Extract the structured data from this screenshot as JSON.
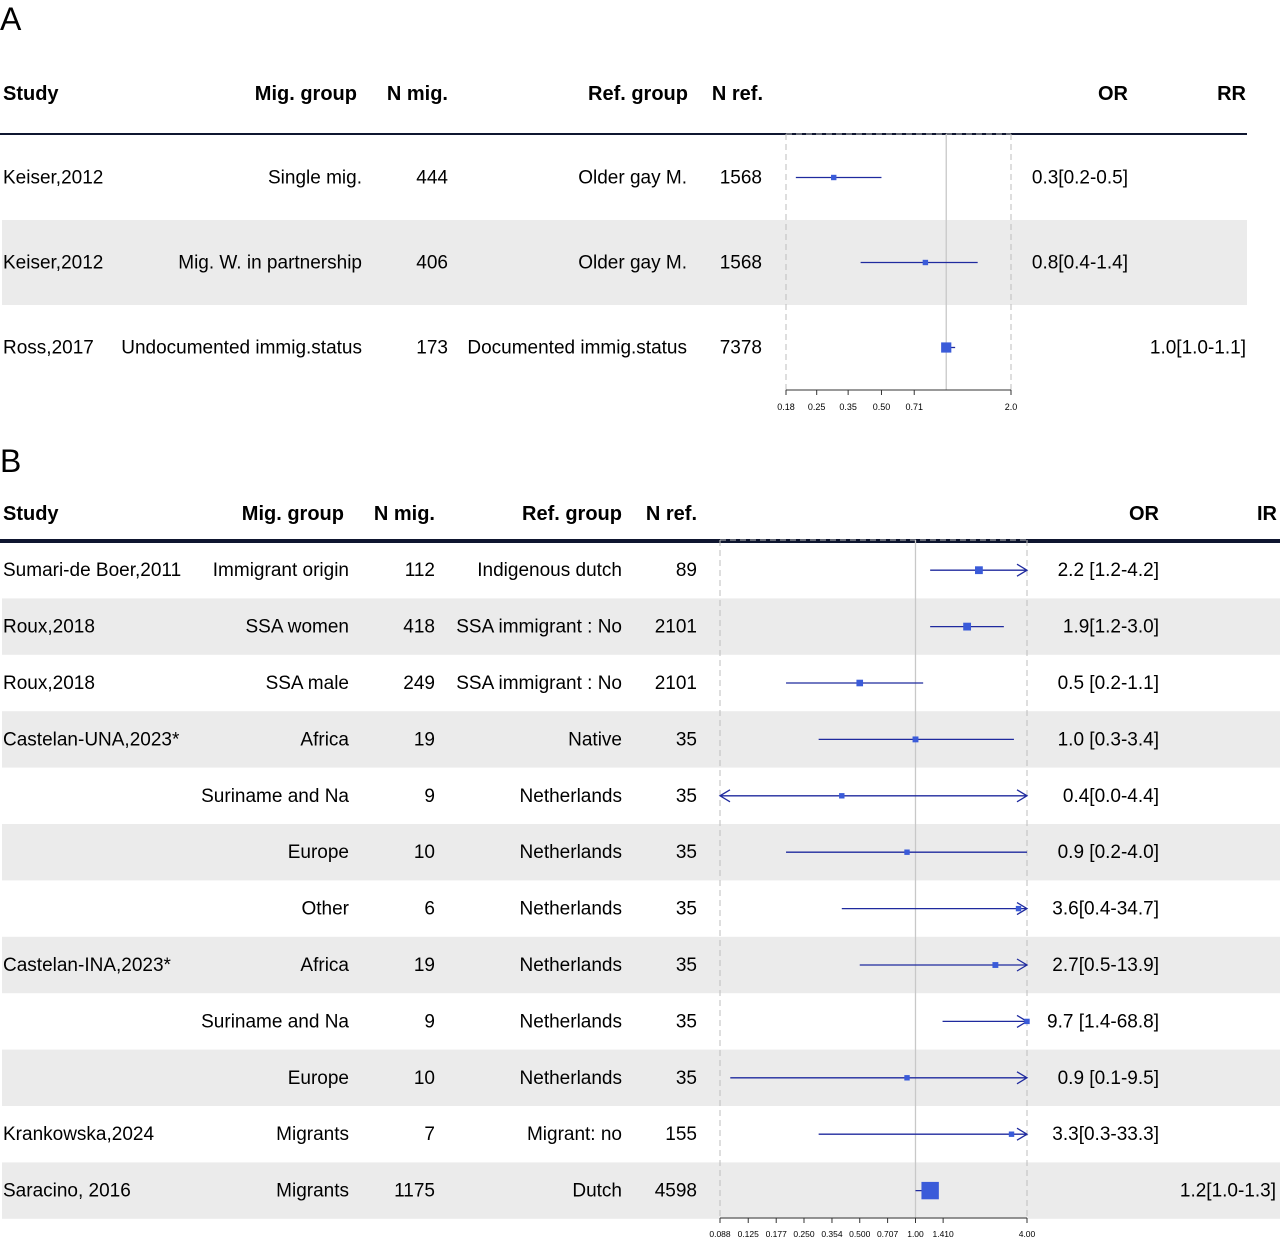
{
  "colors": {
    "marker": "#3a5bd9",
    "ci_line": "#1f2a9e",
    "stripe": "#ebebeb",
    "rule": "#0f1630",
    "ref_line": "#c8c8c8",
    "dashed": "#bdbdbd"
  },
  "chart_data": [
    {
      "type": "forest",
      "panel_label": "A",
      "columns": {
        "study": "Study",
        "mig_group": "Mig. group",
        "n_mig": "N mig.",
        "ref_group": "Ref. group",
        "n_ref": "N ref.",
        "or": "OR",
        "rr": "RR"
      },
      "x_ticks": [
        0.18,
        0.25,
        0.35,
        0.5,
        0.71,
        2.0
      ],
      "x_tick_labels": [
        "0.18",
        "0.25",
        "0.35",
        "0.50",
        "0.71",
        "2.0"
      ],
      "x_range": [
        0.18,
        2.0
      ],
      "reference_value": 1.0,
      "log_scale": true,
      "rows": [
        {
          "study": "Keiser,2012",
          "mig_group": "Single mig.",
          "n_mig": "444",
          "ref_group": "Older gay M.",
          "n_ref": "1568",
          "estimate": 0.3,
          "lower": 0.2,
          "upper": 0.5,
          "or_text": "0.3[0.2-0.5]",
          "rr_text": "",
          "weight": 1,
          "shaded": false
        },
        {
          "study": "Keiser,2012",
          "mig_group": "Mig. W. in partnership",
          "n_mig": "406",
          "ref_group": "Older gay M.",
          "n_ref": "1568",
          "estimate": 0.8,
          "lower": 0.4,
          "upper": 1.4,
          "or_text": "0.8[0.4-1.4]",
          "rr_text": "",
          "weight": 1,
          "shaded": true
        },
        {
          "study": "Ross,2017",
          "mig_group": "Undocumented immig.status",
          "n_mig": "173",
          "ref_group": "Documented immig.status",
          "n_ref": "7378",
          "estimate": 1.0,
          "lower": 1.0,
          "upper": 1.1,
          "or_text": "",
          "rr_text": "1.0[1.0-1.1]",
          "weight": 3,
          "shaded": false
        }
      ]
    },
    {
      "type": "forest",
      "panel_label": "B",
      "columns": {
        "study": "Study",
        "mig_group": "Mig. group",
        "n_mig": "N mig.",
        "ref_group": "Ref. group",
        "n_ref": "N ref.",
        "or": "OR",
        "rr": "IR"
      },
      "x_ticks": [
        0.088,
        0.125,
        0.177,
        0.25,
        0.354,
        0.5,
        0.707,
        1.0,
        1.41,
        4.0
      ],
      "x_tick_labels": [
        "0.088",
        "0.125",
        "0.177",
        "0.250",
        "0.354",
        "0.500",
        "0.707",
        "1.00",
        "1.410",
        "4.00"
      ],
      "x_range": [
        0.088,
        4.0
      ],
      "reference_value": 1.0,
      "log_scale": true,
      "rows": [
        {
          "study": "Sumari-de Boer,2011",
          "mig_group": "Immigrant origin",
          "n_mig": "112",
          "ref_group": "Indigenous dutch",
          "n_ref": "89",
          "estimate": 2.2,
          "lower": 1.2,
          "upper": 4.2,
          "or_text": "2.2 [1.2-4.2]",
          "rr_text": "",
          "weight": 2,
          "shaded": false
        },
        {
          "study": "Roux,2018",
          "mig_group": "SSA women",
          "n_mig": "418",
          "ref_group": "SSA immigrant : No",
          "n_ref": "2101",
          "estimate": 1.9,
          "lower": 1.2,
          "upper": 3.0,
          "or_text": "1.9[1.2-3.0]",
          "rr_text": "",
          "weight": 2,
          "shaded": true
        },
        {
          "study": "Roux,2018",
          "mig_group": "SSA male",
          "n_mig": "249",
          "ref_group": "SSA immigrant : No",
          "n_ref": "2101",
          "estimate": 0.5,
          "lower": 0.2,
          "upper": 1.1,
          "or_text": "0.5 [0.2-1.1]",
          "rr_text": "",
          "weight": 1.5,
          "shaded": false
        },
        {
          "study": "Castelan-UNA,2023*",
          "mig_group": "Africa",
          "n_mig": "19",
          "ref_group": "Native",
          "n_ref": "35",
          "estimate": 1.0,
          "lower": 0.3,
          "upper": 3.4,
          "or_text": "1.0 [0.3-3.4]",
          "rr_text": "",
          "weight": 1.2,
          "shaded": true
        },
        {
          "study": "",
          "mig_group": "Suriname and Na",
          "n_mig": "9",
          "ref_group": "Netherlands",
          "n_ref": "35",
          "estimate": 0.4,
          "lower": 0.0,
          "upper": 4.4,
          "or_text": "0.4[0.0-4.4]",
          "rr_text": "",
          "weight": 1,
          "shaded": false
        },
        {
          "study": "",
          "mig_group": "Europe",
          "n_mig": "10",
          "ref_group": "Netherlands",
          "n_ref": "35",
          "estimate": 0.9,
          "lower": 0.2,
          "upper": 4.0,
          "or_text": "0.9 [0.2-4.0]",
          "rr_text": "",
          "weight": 1,
          "shaded": true
        },
        {
          "study": "",
          "mig_group": "Other",
          "n_mig": "6",
          "ref_group": "Netherlands",
          "n_ref": "35",
          "estimate": 3.6,
          "lower": 0.4,
          "upper": 34.7,
          "or_text": "3.6[0.4-34.7]",
          "rr_text": "",
          "weight": 1,
          "shaded": false
        },
        {
          "study": "Castelan-INA,2023*",
          "mig_group": "Africa",
          "n_mig": "19",
          "ref_group": "Netherlands",
          "n_ref": "35",
          "estimate": 2.7,
          "lower": 0.5,
          "upper": 13.9,
          "or_text": "2.7[0.5-13.9]",
          "rr_text": "",
          "weight": 1.2,
          "shaded": true
        },
        {
          "study": "",
          "mig_group": "Suriname and Na",
          "n_mig": "9",
          "ref_group": "Netherlands",
          "n_ref": "35",
          "estimate": 9.7,
          "lower": 1.4,
          "upper": 68.8,
          "or_text": "9.7 [1.4-68.8]",
          "rr_text": "",
          "weight": 1,
          "shaded": false
        },
        {
          "study": "",
          "mig_group": "Europe",
          "n_mig": "10",
          "ref_group": "Netherlands",
          "n_ref": "35",
          "estimate": 0.9,
          "lower": 0.1,
          "upper": 9.5,
          "or_text": "0.9 [0.1-9.5]",
          "rr_text": "",
          "weight": 1,
          "shaded": true
        },
        {
          "study": "Krankowska,2024",
          "mig_group": "Migrants",
          "n_mig": "7",
          "ref_group": "Migrant: no",
          "n_ref": "155",
          "estimate": 3.3,
          "lower": 0.3,
          "upper": 33.3,
          "or_text": "3.3[0.3-33.3]",
          "rr_text": "",
          "weight": 1,
          "shaded": false
        },
        {
          "study": "Saracino, 2016",
          "mig_group": "Migrants",
          "n_mig": "1175",
          "ref_group": "Dutch",
          "n_ref": "4598",
          "estimate": 1.2,
          "lower": 1.0,
          "upper": 1.3,
          "or_text": "",
          "rr_text": "1.2[1.0-1.3]",
          "weight": 6,
          "shaded": true
        }
      ]
    }
  ]
}
